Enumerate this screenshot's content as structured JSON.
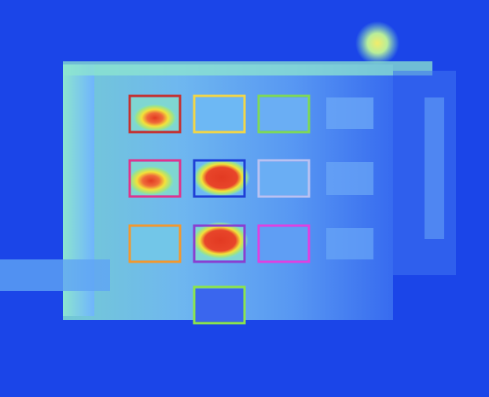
{
  "image": {
    "kind": "thermal-image",
    "subject": "building-facade",
    "palette": {
      "cold": "#1b45e8",
      "cool": "#6fb3ff",
      "mid": "#7fe1c8",
      "warm": "#f2e23a",
      "hot": "#e23a22"
    }
  },
  "regions": [
    {
      "label": "",
      "color": "#c53030",
      "level": "hot"
    },
    {
      "label": "",
      "color": "#f2d648",
      "level": "cool"
    },
    {
      "label": "",
      "color": "#7ed957",
      "level": "cool"
    },
    {
      "label": "",
      "color": "#e0348a",
      "level": "hot"
    },
    {
      "label": "",
      "color": "#1f3fd6",
      "level": "very-hot"
    },
    {
      "label": "",
      "color": "#b9c2f2",
      "level": "cool"
    },
    {
      "label": "",
      "color": "#f2982e",
      "level": "cool"
    },
    {
      "label": "",
      "color": "#8a3fd0",
      "level": "very-hot"
    },
    {
      "label": "",
      "color": "#e040e0",
      "level": "cool"
    },
    {
      "label": "",
      "color": "#8be34d",
      "level": "cold"
    }
  ]
}
